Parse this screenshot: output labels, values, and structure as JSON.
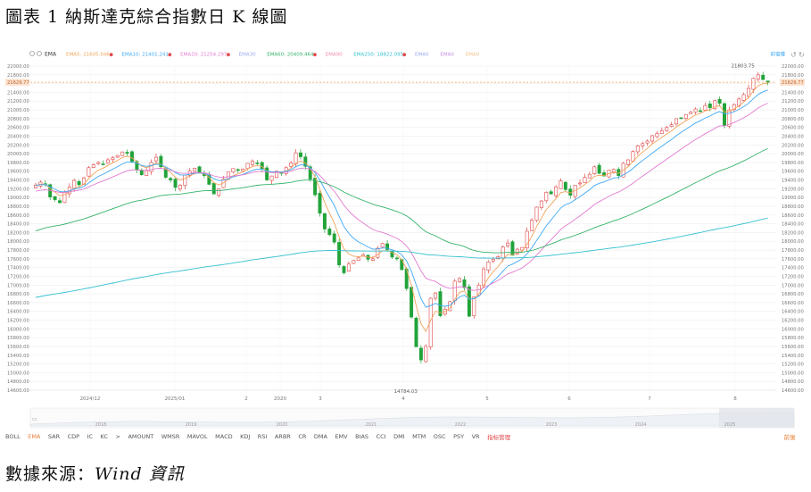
{
  "figure": {
    "title": "圖表 1 納斯達克綜合指數日 K 線圖",
    "source_prefix": "數據來源：",
    "source_name": "Wind 資訊"
  },
  "header": {
    "indicator": "EMA",
    "ma_legend": [
      {
        "label": "EMA5: 21605.046",
        "color": "#f0a35a"
      },
      {
        "label": "EMA10: 21401.241",
        "color": "#3fa9f5"
      },
      {
        "label": "EMA20: 21254.297",
        "color": "#e27bd0"
      },
      {
        "label": "EMA30",
        "color": "#9aa8f0"
      },
      {
        "label": "EMA60: 20409.464",
        "color": "#36b36b"
      },
      {
        "label": "EMA90",
        "color": "#f08ab0"
      },
      {
        "label": "EMA250: 18822.095",
        "color": "#35c0d0"
      },
      {
        "label": "EMA0",
        "color": "#9aa8f0"
      },
      {
        "label": "EMA0",
        "color": "#c28ae0"
      },
      {
        "label": "EMA0",
        "color": "#f0c08a"
      }
    ],
    "right_label": "前復權"
  },
  "toolbar": {
    "items": [
      "BOLL",
      "EMA",
      "SAR",
      "CDP",
      "IC",
      "KC",
      ">",
      "AMOUNT",
      "WMSR",
      "MAVOL",
      "MACD",
      "KDJ",
      "RSI",
      "ARBR",
      "CR",
      "DMA",
      "EMV",
      "BIAS",
      "CCI",
      "DMI",
      "MTM",
      "OSC",
      "PSY",
      "VR",
      "指标管理"
    ],
    "active": "EMA",
    "right": "前復"
  },
  "chart_data": {
    "type": "candlestick",
    "title": "",
    "y_range": [
      14600,
      22000
    ],
    "y_ticks": [
      "22000.00",
      "21800.00",
      "21600.00",
      "21400.00",
      "21200.00",
      "21000.00",
      "20800.00",
      "20600.00",
      "20400.00",
      "20200.00",
      "20000.00",
      "19800.00",
      "19600.00",
      "19400.00",
      "19200.00",
      "19000.00",
      "18800.00",
      "18600.00",
      "18400.00",
      "18200.00",
      "18000.00",
      "17800.00",
      "17600.00",
      "17400.00",
      "17200.00",
      "17000.00",
      "16800.00",
      "16600.00",
      "16400.00",
      "16200.00",
      "16000.00",
      "15800.00",
      "15600.00",
      "15400.00",
      "15200.00",
      "15000.00",
      "14800.00",
      "14600.00"
    ],
    "x_month_labels": [
      "2024/12",
      "2025/01",
      "2",
      "2020",
      "3",
      "4",
      "5",
      "6",
      "7",
      "8"
    ],
    "navigator_years": [
      "2018",
      "2019",
      "2020",
      "2021",
      "2022",
      "2023",
      "2024",
      "2025"
    ],
    "current_price_label": "21629.77",
    "current_price": 21629.77,
    "annotations": [
      {
        "text": "21803.75",
        "value": 21803.75,
        "kind": "high"
      },
      {
        "text": "14784.03",
        "value": 14784.03,
        "kind": "low"
      }
    ],
    "up_color": "#ffffff",
    "up_border": "#e04747",
    "down_color": "#22a33a",
    "series_closes": [
      19280,
      19350,
      19300,
      19010,
      18950,
      18880,
      19120,
      19240,
      19390,
      19290,
      19450,
      19680,
      19750,
      19800,
      19760,
      19860,
      19910,
      19960,
      20040,
      20010,
      19820,
      19630,
      19520,
      19610,
      19800,
      19920,
      19700,
      19460,
      19400,
      19230,
      19280,
      19510,
      19600,
      19670,
      19580,
      19500,
      19300,
      19080,
      19200,
      19420,
      19580,
      19660,
      19630,
      19650,
      19780,
      19830,
      19780,
      19660,
      19400,
      19490,
      19600,
      19550,
      19680,
      19790,
      20020,
      19930,
      19710,
      19420,
      19060,
      18640,
      18280,
      18150,
      17980,
      17460,
      17280,
      17480,
      17560,
      17620,
      17690,
      17590,
      17600,
      17840,
      17950,
      17810,
      17640,
      17600,
      17350,
      16920,
      16270,
      15590,
      15290,
      15600,
      16700,
      16820,
      16300,
      16450,
      16620,
      17090,
      17150,
      16940,
      16290,
      16730,
      17000,
      17370,
      17530,
      17590,
      17650,
      17870,
      17960,
      17680,
      17820,
      17860,
      18230,
      18480,
      18780,
      18920,
      19120,
      19080,
      19240,
      19380,
      19180,
      19050,
      19280,
      19330,
      19460,
      19530,
      19700,
      19550,
      19490,
      19620,
      19640,
      19500,
      19780,
      19860,
      20050,
      20180,
      20230,
      20290,
      20410,
      20460,
      20520,
      20600,
      20660,
      20800,
      20820,
      20890,
      20950,
      21020,
      20980,
      21100,
      21050,
      21210,
      21150,
      20650,
      21000,
      21120,
      21250,
      21350,
      21490,
      21720,
      21800,
      21690,
      21630
    ],
    "series_ema_labels": [
      "EMA5",
      "EMA10",
      "EMA20",
      "EMA60",
      "EMA250"
    ]
  }
}
